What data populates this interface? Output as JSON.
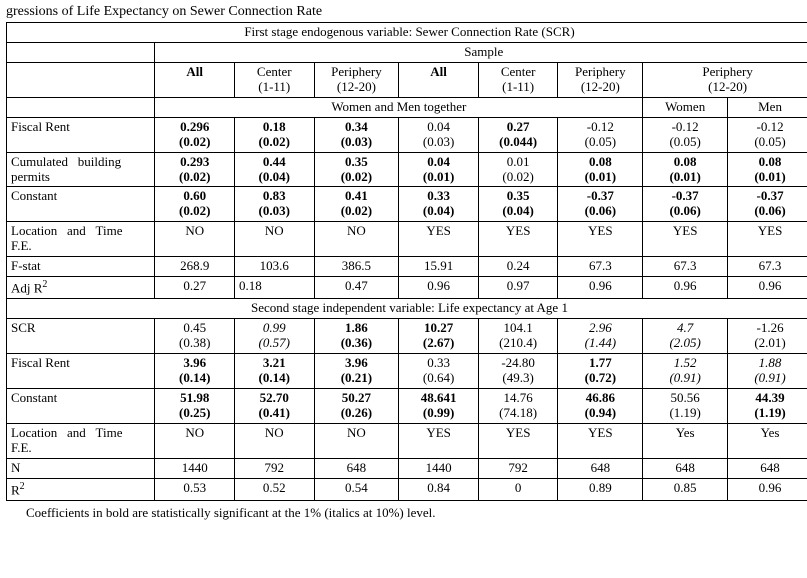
{
  "title_frag": "gressions of Life Expectancy on Sewer Connection Rate",
  "first_stage_header": "First stage endogenous variable: Sewer Connection Rate (SCR)",
  "sample_label": "Sample",
  "col_groups": {
    "all1": "All",
    "center1_a": "Center",
    "center1_b": "(1-11)",
    "periph1_a": "Periphery",
    "periph1_b": "(12-20)",
    "all2": "All",
    "center2_a": "Center",
    "center2_b": "(1-11)",
    "periph2_a": "Periphery",
    "periph2_b": "(12-20)",
    "periph3_a": "Periphery",
    "periph3_b": "(12-20)"
  },
  "subhead": {
    "together": "Women and Men together",
    "women": "Women",
    "men": "Men"
  },
  "rows1": {
    "fiscal_rent": {
      "label": "Fiscal Rent",
      "c": [
        {
          "v": "0.296",
          "se": "(0.02)",
          "bold": true
        },
        {
          "v": "0.18",
          "se": "(0.02)",
          "bold": true
        },
        {
          "v": "0.34",
          "se": "(0.03)",
          "bold": true
        },
        {
          "v": "0.04",
          "se": "(0.03)",
          "bold": false
        },
        {
          "v": "0.27",
          "se": "(0.044)",
          "bold": true
        },
        {
          "v": "-0.12",
          "se": "(0.05)",
          "bold": false
        },
        {
          "v": "-0.12",
          "se": "(0.05)",
          "bold": false
        },
        {
          "v": "-0.12",
          "se": "(0.05)",
          "bold": false
        }
      ]
    },
    "cum_permits": {
      "label_a": "Cumulated",
      "label_b": "building",
      "label_c": "permits",
      "c": [
        {
          "v": "0.293",
          "se": "(0.02)",
          "bold": true
        },
        {
          "v": "0.44",
          "se": "(0.04)",
          "bold": true
        },
        {
          "v": "0.35",
          "se": "(0.02)",
          "bold": true
        },
        {
          "v": "0.04",
          "se": "(0.01)",
          "bold": true
        },
        {
          "v": "0.01",
          "se": "(0.02)",
          "bold": false
        },
        {
          "v": "0.08",
          "se": "(0.01)",
          "bold": true
        },
        {
          "v": "0.08",
          "se": "(0.01)",
          "bold": true
        },
        {
          "v": "0.08",
          "se": "(0.01)",
          "bold": true
        }
      ]
    },
    "constant": {
      "label": "Constant",
      "c": [
        {
          "v": "0.60",
          "se": "(0.02)",
          "bold": true
        },
        {
          "v": "0.83",
          "se": "(0.03)",
          "bold": true
        },
        {
          "v": "0.41",
          "se": "(0.02)",
          "bold": true
        },
        {
          "v": "0.33",
          "se": "(0.04)",
          "bold": true
        },
        {
          "v": "0.35",
          "se": "(0.04)",
          "bold": true
        },
        {
          "v": "-0.37",
          "se": "(0.06)",
          "bold": true
        },
        {
          "v": "-0.37",
          "se": "(0.06)",
          "bold": true
        },
        {
          "v": "-0.37",
          "se": "(0.06)",
          "bold": true
        }
      ]
    },
    "fe": {
      "label_a": "Location",
      "label_b": "and",
      "label_c": "Time",
      "label_d": "F.E.",
      "c": [
        "NO",
        "NO",
        "NO",
        "YES",
        "YES",
        "YES",
        "YES",
        "YES"
      ]
    },
    "fstat": {
      "label": "F-stat",
      "c": [
        "268.9",
        "103.6",
        "386.5",
        "15.91",
        "0.24",
        "67.3",
        "67.3",
        "67.3"
      ]
    },
    "adjr2": {
      "label_a": "Adj R",
      "label_sup": "2",
      "c": [
        "0.27",
        "0.18",
        "0.47",
        "0.96",
        "0.97",
        "0.96",
        "0.96",
        "0.96"
      ]
    }
  },
  "second_stage_header": "Second stage independent variable: Life expectancy at Age 1",
  "rows2": {
    "scr": {
      "label": "SCR",
      "c": [
        {
          "v": "0.45",
          "se": "(0.38)",
          "style": "plain"
        },
        {
          "v": "0.99",
          "se": "(0.57)",
          "style": "italic"
        },
        {
          "v": "1.86",
          "se": "(0.36)",
          "style": "bold"
        },
        {
          "v": "10.27",
          "se": "(2.67)",
          "style": "bold"
        },
        {
          "v": "104.1",
          "se": "(210.4)",
          "style": "plain"
        },
        {
          "v": "2.96",
          "se": "(1.44)",
          "style": "italic"
        },
        {
          "v": "4.7",
          "se": "(2.05)",
          "style": "italic"
        },
        {
          "v": "-1.26",
          "se": "(2.01)",
          "style": "plain"
        }
      ]
    },
    "fiscal_rent": {
      "label": "Fiscal Rent",
      "c": [
        {
          "v": "3.96",
          "se": "(0.14)",
          "style": "bold"
        },
        {
          "v": "3.21",
          "se": "(0.14)",
          "style": "bold"
        },
        {
          "v": "3.96",
          "se": "(0.21)",
          "style": "bold"
        },
        {
          "v": "0.33",
          "se": "(0.64)",
          "style": "plain"
        },
        {
          "v": "-24.80",
          "se": "(49.3)",
          "style": "plain"
        },
        {
          "v": "1.77",
          "se": "(0.72)",
          "style": "bold"
        },
        {
          "v": "1.52",
          "se": "(0.91)",
          "style": "italic"
        },
        {
          "v": "1.88",
          "se": "(0.91)",
          "style": "italic"
        }
      ]
    },
    "constant": {
      "label": "Constant",
      "c": [
        {
          "v": "51.98",
          "se": "(0.25)",
          "style": "bold"
        },
        {
          "v": "52.70",
          "se": "(0.41)",
          "style": "bold"
        },
        {
          "v": "50.27",
          "se": "(0.26)",
          "style": "bold"
        },
        {
          "v": "48.641",
          "se": "(0.99)",
          "style": "bold"
        },
        {
          "v": "14.76",
          "se": "(74.18)",
          "style": "plain"
        },
        {
          "v": "46.86",
          "se": "(0.94)",
          "style": "bold"
        },
        {
          "v": "50.56",
          "se": "(1.19)",
          "style": "plain"
        },
        {
          "v": "44.39",
          "se": "(1.19)",
          "style": "bold"
        }
      ]
    },
    "fe": {
      "label_a": "Location",
      "label_b": "and",
      "label_c": "Time",
      "label_d": "F.E.",
      "c": [
        "NO",
        "NO",
        "NO",
        "YES",
        "YES",
        "YES",
        "Yes",
        "Yes"
      ]
    },
    "n": {
      "label": "N",
      "c": [
        "1440",
        "792",
        "648",
        "1440",
        "792",
        "648",
        "648",
        "648"
      ]
    },
    "r2": {
      "label_a": "R",
      "label_sup": "2",
      "c": [
        "0.53",
        "0.52",
        "0.54",
        "0.84",
        "0",
        "0.89",
        "0.85",
        "0.96"
      ]
    }
  },
  "footnote": "Coefficients in bold are statistically significant at the 1% (italics at 10%) level."
}
